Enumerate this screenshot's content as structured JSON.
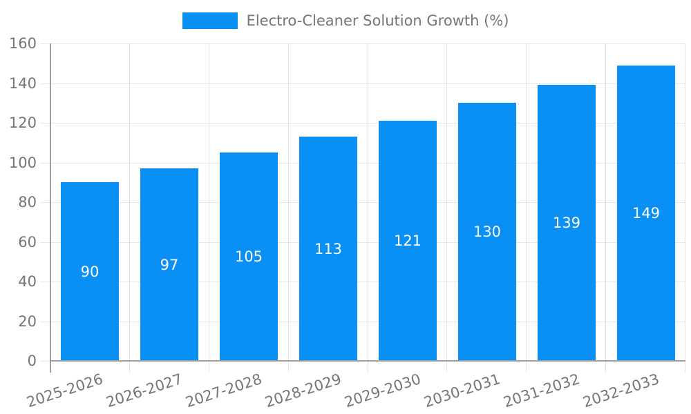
{
  "legend": {
    "label": "Electro-Cleaner Solution Growth (%)"
  },
  "chart_data": {
    "type": "bar",
    "title": "Electro-Cleaner Solution Growth (%)",
    "categories": [
      "2025-2026",
      "2026-2027",
      "2027-2028",
      "2028-2029",
      "2029-2030",
      "2030-2031",
      "2031-2032",
      "2032-2033"
    ],
    "values": [
      90,
      97,
      105,
      113,
      121,
      130,
      139,
      149
    ],
    "xlabel": "",
    "ylabel": "",
    "ylim": [
      0,
      160
    ],
    "ytick_step": 20,
    "yticks": [
      0,
      20,
      40,
      60,
      80,
      100,
      120,
      140,
      160
    ],
    "grid": true,
    "legend_position": "top-center",
    "value_labels": "inside-center",
    "bar_color": "#0a8ff4",
    "value_label_color": "#ffffff",
    "axis_text_color": "#757575",
    "axis_line_color": "#9e9e9e",
    "grid_color": "#e6e6e6"
  }
}
